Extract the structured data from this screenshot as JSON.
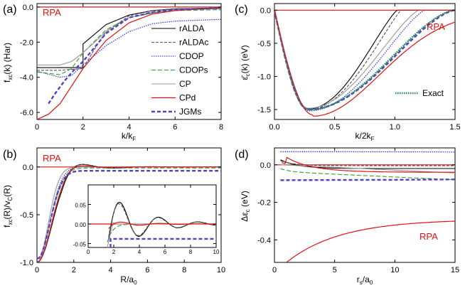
{
  "figure": {
    "colors": {
      "rALDA": "#000000",
      "rALDAc": "#555555",
      "CDOP": "#1a1aff",
      "CDOPs": "#2e9e2e",
      "CP": "#999999",
      "CPd": "#e01010",
      "JGMs": "#5540c0",
      "Exact": "#2a8a6a",
      "RPA": "#e01010"
    }
  },
  "chart_data": [
    {
      "panel_label": "(a)",
      "type": "line",
      "xlabel": "k/k_F",
      "ylabel": "f_xc(k)  (Har)",
      "xlim": [
        0,
        8
      ],
      "ylim": [
        -6.4,
        0.2
      ],
      "xticks": [
        "0",
        "2",
        "4",
        "6",
        "8"
      ],
      "yticks": [
        "0.0",
        "-2.0",
        "-4.0",
        "-6.0"
      ],
      "annotation": "RPA",
      "legend": [
        "rALDA",
        "rALDAc",
        "CDOP",
        "CDOPs",
        "CP",
        "CPd",
        "JGMs"
      ],
      "series": [
        {
          "name": "RPA",
          "x": [
            0,
            8
          ],
          "y": [
            0,
            0
          ]
        },
        {
          "name": "rALDA",
          "x": [
            0,
            2,
            2,
            3,
            4,
            5,
            6,
            8
          ],
          "y": [
            -3.45,
            -3.45,
            -2.1,
            -1.0,
            -0.45,
            -0.2,
            -0.1,
            -0.05
          ]
        },
        {
          "name": "rALDAc",
          "x": [
            0,
            1,
            2,
            2.5,
            3,
            4,
            5,
            6,
            8
          ],
          "y": [
            -3.6,
            -3.6,
            -3.5,
            -2.4,
            -1.4,
            -0.5,
            -0.2,
            -0.1,
            -0.05
          ]
        },
        {
          "name": "CDOP",
          "x": [
            0,
            1,
            1.5,
            2,
            3,
            4,
            5,
            6,
            8
          ],
          "y": [
            -3.65,
            -4.0,
            -3.9,
            -3.3,
            -2.2,
            -1.4,
            -0.95,
            -0.8,
            -0.7
          ]
        },
        {
          "name": "CDOPs",
          "x": [
            0,
            1,
            1.5,
            2,
            3,
            4,
            5,
            6,
            8
          ],
          "y": [
            -3.7,
            -3.85,
            -3.5,
            -2.6,
            -1.3,
            -0.6,
            -0.35,
            -0.2,
            -0.15
          ]
        },
        {
          "name": "CP",
          "x": [
            0,
            1,
            1.5,
            2,
            3,
            4,
            5,
            6,
            8
          ],
          "y": [
            -3.3,
            -3.3,
            -3.1,
            -2.6,
            -1.4,
            -0.6,
            -0.3,
            -0.15,
            -0.1
          ]
        },
        {
          "name": "CPd",
          "x": [
            0,
            0.5,
            1,
            2,
            3,
            4,
            5,
            6,
            8
          ],
          "y": [
            -6.4,
            -6.1,
            -5.5,
            -3.5,
            -1.9,
            -0.9,
            -0.4,
            -0.2,
            -0.05
          ]
        },
        {
          "name": "JGMs",
          "x": [
            0.5,
            0.8,
            1.2,
            1.6,
            2,
            2.5,
            3,
            4,
            5,
            6,
            8
          ],
          "y": [
            -5.5,
            -4.9,
            -4.2,
            -3.6,
            -3.1,
            -2.3,
            -1.5,
            -0.6,
            -0.3,
            -0.15,
            -0.05
          ]
        }
      ]
    },
    {
      "panel_label": "(b)",
      "type": "line",
      "xlabel": "R/a_0",
      "ylabel": "f_xc(R)/v_C(R)",
      "xlim": [
        0,
        10
      ],
      "ylim": [
        -1.0,
        0.2
      ],
      "xticks": [
        "0",
        "2",
        "4",
        "6",
        "8",
        "10"
      ],
      "yticks": [
        "0.0",
        "-0.5",
        "-1.0"
      ],
      "annotation": "RPA",
      "inset": {
        "xlim": [
          0,
          10
        ],
        "ylim": [
          -0.06,
          0.1
        ],
        "xticks": [
          "0",
          "2",
          "4",
          "6",
          "8",
          "10"
        ],
        "yticks": [
          "0.05",
          "0.00",
          "-0.05"
        ]
      }
    },
    {
      "panel_label": "(c)",
      "type": "line",
      "xlabel": "k/2k_F",
      "ylabel": "ε̄_c(k)  (eV)",
      "xlim": [
        0,
        1.5
      ],
      "ylim": [
        -1.65,
        0.1
      ],
      "xticks": [
        "0.0",
        "0.5",
        "1.0",
        "1.5"
      ],
      "yticks": [
        "0.0",
        "-0.5",
        "-1.0",
        "-1.5"
      ],
      "annotation": "RPA",
      "legend": [
        "Exact"
      ]
    },
    {
      "panel_label": "(d)",
      "type": "line",
      "xlabel": "r_s/a_0",
      "ylabel": "Δε_c (eV)",
      "xlim": [
        0,
        15
      ],
      "ylim": [
        -0.52,
        0.09
      ],
      "xticks": [
        "0",
        "5",
        "10",
        "15"
      ],
      "yticks": [
        "0.0",
        "-0.2",
        "-0.4"
      ],
      "annotation": "RPA"
    }
  ]
}
